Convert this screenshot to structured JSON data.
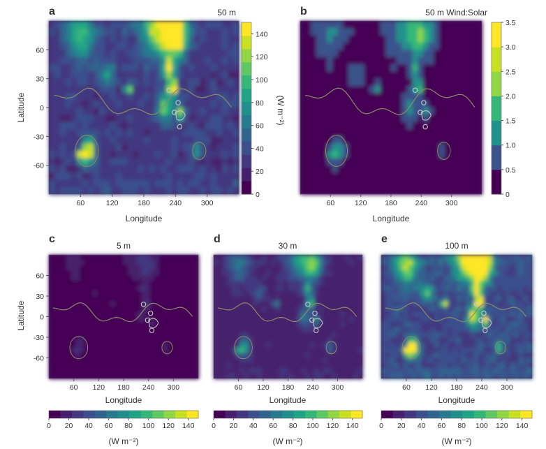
{
  "colors": {
    "viridis_steps": [
      "#440154",
      "#46206c",
      "#43377f",
      "#3b4f8c",
      "#30638e",
      "#287b8e",
      "#21908d",
      "#20a486",
      "#35b779",
      "#5ec962",
      "#90d743",
      "#c8e020",
      "#fde725"
    ],
    "ratio_steps": [
      "#440154",
      "#3b528b",
      "#21918c",
      "#35b779",
      "#90d743",
      "#c8e020",
      "#fde725"
    ],
    "coast": "#8d8a6a",
    "highland": "#c9c9c9"
  },
  "chart_data": [
    {
      "type": "heatmap",
      "panel": "a",
      "title": "50 m",
      "xlabel": "Longitude",
      "ylabel": "Latitude",
      "xticks": [
        "60",
        "120",
        "180",
        "240",
        "300"
      ],
      "yticks": [
        "60",
        "30",
        "0",
        "-30",
        "-60"
      ],
      "colorbar": {
        "label": "(W m⁻²)",
        "ticks": [
          "0",
          "20",
          "40",
          "60",
          "80",
          "100",
          "120",
          "140"
        ],
        "range": [
          0,
          150
        ]
      },
      "intensity": 1.0
    },
    {
      "type": "heatmap",
      "panel": "b",
      "title": "50 m Wind:Solar",
      "xlabel": "Longitude",
      "xticks": [
        "60",
        "120",
        "180",
        "240",
        "300"
      ],
      "colorbar": {
        "ticks": [
          "0",
          "0.5",
          "1.0",
          "1.5",
          "2.0",
          "2.5",
          "3.0",
          "3.5"
        ],
        "range": [
          0,
          3.5
        ]
      },
      "intensity": 0.45
    },
    {
      "type": "heatmap",
      "panel": "c",
      "title": "5 m",
      "xlabel": "Longitude",
      "ylabel": "Latitude",
      "xticks": [
        "60",
        "120",
        "180",
        "240",
        "300"
      ],
      "yticks": [
        "60",
        "30",
        "0",
        "-30",
        "-60"
      ],
      "colorbar": {
        "label": "(W m⁻²)",
        "ticks": [
          "0",
          "20",
          "40",
          "60",
          "80",
          "100",
          "120",
          "140"
        ]
      },
      "intensity": 0.15
    },
    {
      "type": "heatmap",
      "panel": "d",
      "title": "30 m",
      "xlabel": "Longitude",
      "xticks": [
        "60",
        "120",
        "180",
        "240",
        "300"
      ],
      "colorbar": {
        "label": "(W m⁻²)",
        "ticks": [
          "0",
          "20",
          "40",
          "60",
          "80",
          "100",
          "120",
          "140"
        ]
      },
      "intensity": 0.6
    },
    {
      "type": "heatmap",
      "panel": "e",
      "title": "100 m",
      "xlabel": "Longitude",
      "xticks": [
        "60",
        "120",
        "180",
        "240",
        "300"
      ],
      "colorbar": {
        "label": "(W m⁻²)",
        "ticks": [
          "0",
          "20",
          "40",
          "60",
          "80",
          "100",
          "120",
          "140"
        ]
      },
      "intensity": 1.25
    }
  ]
}
